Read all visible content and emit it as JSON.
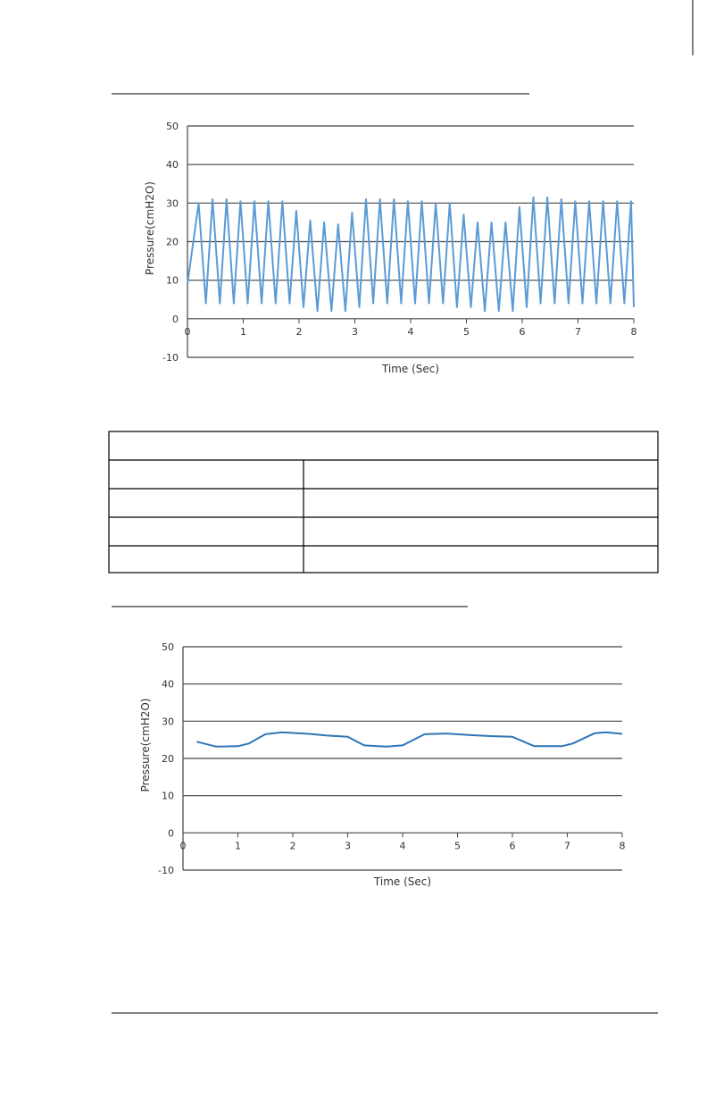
{
  "chart_data": [
    {
      "type": "line",
      "ylabel": "Pressure(cmH2O)",
      "xlabel": "Time (Sec)",
      "color": "#5b9bd5",
      "x": [
        0,
        0.2,
        0.33,
        0.45,
        0.58,
        0.7,
        0.83,
        0.95,
        1.08,
        1.2,
        1.33,
        1.45,
        1.58,
        1.7,
        1.83,
        1.95,
        2.08,
        2.2,
        2.33,
        2.45,
        2.58,
        2.7,
        2.83,
        2.95,
        3.08,
        3.2,
        3.33,
        3.45,
        3.58,
        3.7,
        3.83,
        3.95,
        4.08,
        4.2,
        4.33,
        4.45,
        4.58,
        4.7,
        4.83,
        4.95,
        5.08,
        5.2,
        5.33,
        5.45,
        5.58,
        5.7,
        5.83,
        5.95,
        6.08,
        6.2,
        6.33,
        6.45,
        6.58,
        6.7,
        6.83,
        6.95,
        7.08,
        7.2,
        7.33,
        7.45,
        7.58,
        7.7,
        7.83,
        7.95,
        8
      ],
      "values": [
        9,
        30,
        4,
        31,
        4,
        31,
        4,
        30.5,
        4,
        30.5,
        4,
        30.5,
        4,
        30.5,
        4,
        28,
        3,
        25.5,
        2,
        25,
        2,
        24.5,
        2,
        27.5,
        3,
        31,
        4,
        31,
        4,
        31,
        4,
        30.5,
        4,
        30.5,
        4,
        30,
        4,
        30,
        3,
        27,
        3,
        25,
        2,
        25,
        2,
        25,
        2,
        29,
        3,
        31.5,
        4,
        31.5,
        4,
        31,
        4,
        30.5,
        4,
        30.5,
        4,
        30.5,
        4,
        30.5,
        4,
        30.5,
        3
      ],
      "xlim": [
        0,
        8
      ],
      "xticks": [
        0,
        1,
        2,
        3,
        4,
        5,
        6,
        7,
        8
      ],
      "ylim": [
        -10,
        50
      ],
      "yticks": [
        -10,
        0,
        10,
        20,
        30,
        40,
        50
      ],
      "grid": true
    },
    {
      "type": "line",
      "ylabel": "Pressure(cmH2O)",
      "xlabel": "Time (Sec)",
      "color": "#2e75b6",
      "x": [
        0.25,
        0.6,
        1,
        1.2,
        1.5,
        1.8,
        2.3,
        2.6,
        3,
        3.3,
        3.7,
        4,
        4.4,
        4.8,
        5.2,
        5.6,
        6,
        6.4,
        6.9,
        7.1,
        7.5,
        7.7,
        8
      ],
      "values": [
        24.5,
        23.2,
        23.3,
        24,
        26.5,
        27,
        26.6,
        26.2,
        25.8,
        23.5,
        23.2,
        23.5,
        26.5,
        26.7,
        26.3,
        26,
        25.8,
        23.3,
        23.3,
        24,
        26.8,
        27,
        26.6
      ],
      "xlim": [
        0,
        8
      ],
      "xticks": [
        0,
        1,
        2,
        3,
        4,
        5,
        6,
        7,
        8
      ],
      "ylim": [
        -10,
        50
      ],
      "yticks": [
        -10,
        0,
        10,
        20,
        30,
        40,
        50
      ],
      "grid": true
    }
  ]
}
